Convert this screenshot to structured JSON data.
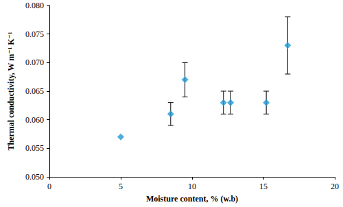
{
  "chart_data": {
    "type": "scatter",
    "x_label": "Moisture content, % (w.b)",
    "y_label": "Thermal conductivity, W m⁻¹ K⁻¹",
    "x": [
      5.0,
      8.5,
      9.5,
      12.2,
      12.7,
      15.2,
      16.7
    ],
    "values": [
      0.057,
      0.061,
      0.067,
      0.063,
      0.063,
      0.063,
      0.073
    ],
    "error_bars": [
      null,
      [
        0.059,
        0.063
      ],
      [
        0.064,
        0.07
      ],
      [
        0.061,
        0.065
      ],
      [
        0.061,
        0.065
      ],
      [
        0.061,
        0.065
      ],
      [
        0.068,
        0.078
      ]
    ],
    "color": "#1e9ad6",
    "marker": "diamond",
    "xlim": [
      0,
      20
    ],
    "xticks": [
      0,
      5,
      10,
      15,
      20
    ],
    "ylim": [
      0.05,
      0.08
    ],
    "yticks": [
      {
        "value": 0.05,
        "label": "0.050"
      },
      0.055,
      {
        "value": 0.06,
        "label": "0.060"
      },
      0.065,
      {
        "value": 0.07,
        "label": "0.070"
      },
      0.075,
      {
        "value": 0.08,
        "label": "0.080"
      }
    ],
    "grid": false
  }
}
